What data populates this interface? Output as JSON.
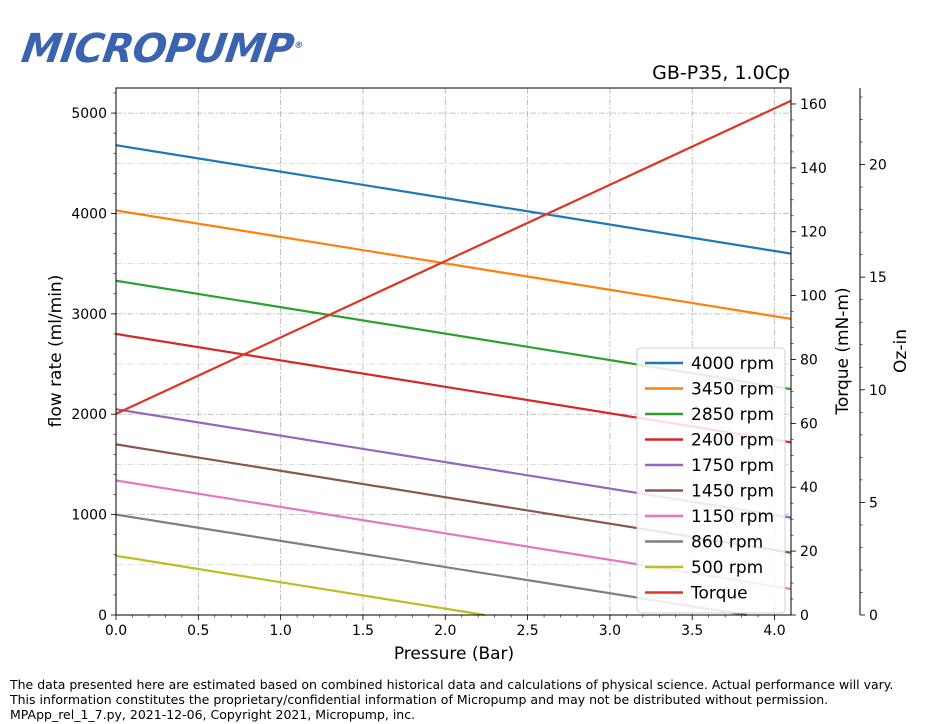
{
  "logo": {
    "text": "MICROPUMP",
    "registered": "®"
  },
  "footer": {
    "line1": "The data presented here are estimated based on combined historical data and calculations of physical science.  Actual performance will vary.",
    "line2": "This information constitutes the proprietary/confidential information of Micropump and may not be distributed without permission.",
    "line3": "MPApp_rel_1_7.py, 2021-12-06, Copyright 2021, Micropump, inc."
  },
  "colors": {
    "4000 rpm": "#1f77b4",
    "3450 rpm": "#ff7f0e",
    "2850 rpm": "#2ca02c",
    "2400 rpm": "#d62728",
    "1750 rpm": "#9467bd",
    "1450 rpm": "#8c564b",
    "1150 rpm": "#e377c2",
    "860 rpm": "#7f7f7f",
    "500 rpm": "#bcbd22",
    "Torque": "#e03323"
  },
  "chart_data": {
    "type": "line",
    "title": "GB-P35,  1.0Cp",
    "xlabel": "Pressure (Bar)",
    "ylabel": "flow rate (ml/min)",
    "y2label": "Torque (mN-m)",
    "y3label": "Oz-in",
    "xlim": [
      0,
      4.1
    ],
    "ylim": [
      0,
      5250
    ],
    "y2lim": [
      0,
      165
    ],
    "y3lim": [
      0,
      23.4
    ],
    "xticks": [
      "0.0",
      "0.5",
      "1.0",
      "1.5",
      "2.0",
      "2.5",
      "3.0",
      "3.5",
      "4.0"
    ],
    "yticks": [
      "0",
      "1000",
      "2000",
      "3000",
      "4000",
      "5000"
    ],
    "y2ticks": [
      "0",
      "20",
      "40",
      "60",
      "80",
      "100",
      "120",
      "140",
      "160"
    ],
    "y3ticks": [
      "0",
      "5",
      "10",
      "15",
      "20"
    ],
    "grid": true,
    "legend_position": "lower-right",
    "series": [
      {
        "name": "4000 rpm",
        "x": [
          0,
          4.1
        ],
        "y": [
          4680,
          3600
        ]
      },
      {
        "name": "3450 rpm",
        "x": [
          0,
          4.1
        ],
        "y": [
          4030,
          2950
        ]
      },
      {
        "name": "2850 rpm",
        "x": [
          0,
          4.1
        ],
        "y": [
          3330,
          2250
        ]
      },
      {
        "name": "2400 rpm",
        "x": [
          0,
          4.1
        ],
        "y": [
          2800,
          1720
        ]
      },
      {
        "name": "1750 rpm",
        "x": [
          0,
          4.1
        ],
        "y": [
          2050,
          970
        ]
      },
      {
        "name": "1450 rpm",
        "x": [
          0,
          4.1
        ],
        "y": [
          1700,
          620
        ]
      },
      {
        "name": "1150 rpm",
        "x": [
          0,
          4.1
        ],
        "y": [
          1340,
          260
        ]
      },
      {
        "name": "860 rpm",
        "x": [
          0,
          3.83
        ],
        "y": [
          1000,
          0
        ]
      },
      {
        "name": "500 rpm",
        "x": [
          0,
          2.24
        ],
        "y": [
          590,
          0
        ]
      },
      {
        "name": "Torque",
        "axis": "y2",
        "x": [
          0,
          4.1
        ],
        "y": [
          63,
          161
        ]
      }
    ]
  }
}
